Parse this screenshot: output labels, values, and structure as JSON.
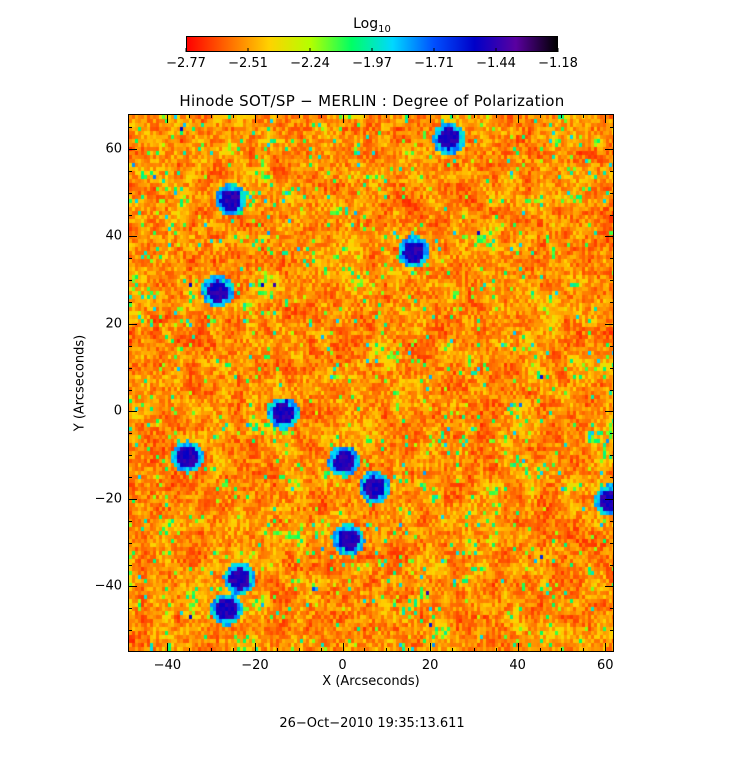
{
  "colorbar": {
    "title": "Log",
    "title_sub": "10",
    "tick_labels": [
      "−2.77",
      "−2.51",
      "−2.24",
      "−1.97",
      "−1.71",
      "−1.44",
      "−1.18"
    ],
    "colors": [
      "#ff0000",
      "#ff6a00",
      "#ffd200",
      "#b4ff00",
      "#00ff64",
      "#00d8ff",
      "#0050ff",
      "#0000c8",
      "#5a00a0",
      "#000000"
    ]
  },
  "chart_data": {
    "type": "heatmap",
    "title": "Hinode SOT/SP − MERLIN : Degree of Polarization",
    "xlabel": "X (Arcseconds)",
    "ylabel": "Y (Arcseconds)",
    "xlim": [
      -49,
      62
    ],
    "ylim": [
      -55,
      68
    ],
    "x_ticks": [
      -40,
      -20,
      0,
      20,
      40,
      60
    ],
    "x_tick_labels": [
      "−40",
      "−20",
      "0",
      "20",
      "40",
      "60"
    ],
    "y_ticks": [
      -40,
      -20,
      0,
      20,
      40,
      60
    ],
    "y_tick_labels": [
      "−40",
      "−20",
      "0",
      "20",
      "40",
      "60"
    ],
    "color_scale": "log10",
    "value_range": [
      -2.77,
      -1.18
    ],
    "dominant_level": -2.7,
    "strong_polarization_patches": [
      {
        "x": -36,
        "y": -10
      },
      {
        "x": -14,
        "y": 0
      },
      {
        "x": 0,
        "y": -11
      },
      {
        "x": 1,
        "y": -29
      },
      {
        "x": 16,
        "y": 37
      },
      {
        "x": -29,
        "y": 28
      },
      {
        "x": -26,
        "y": 49
      },
      {
        "x": 24,
        "y": 63
      },
      {
        "x": 61,
        "y": -20
      },
      {
        "x": -27,
        "y": -45
      },
      {
        "x": -24,
        "y": -38
      },
      {
        "x": 7,
        "y": -17
      }
    ]
  },
  "footer": {
    "timestamp": "26−Oct−2010 19:35:13.611"
  }
}
